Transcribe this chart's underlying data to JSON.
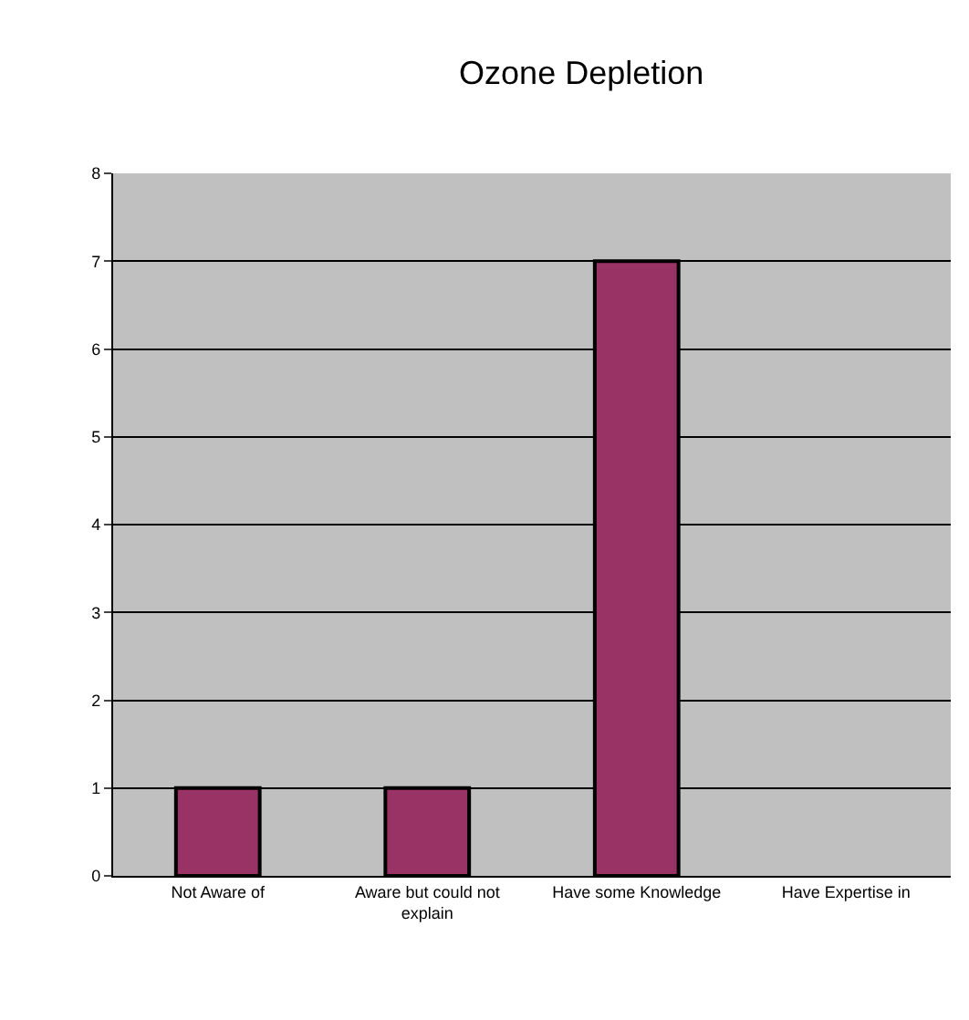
{
  "chart_data": {
    "type": "bar",
    "title": "Ozone Depletion",
    "categories": [
      "Not Aware of",
      "Aware but could not explain",
      "Have some Knowledge",
      "Have Expertise in"
    ],
    "values": [
      1,
      1,
      7,
      0
    ],
    "color": "#993366",
    "ylim": [
      0,
      8
    ],
    "yticks": [
      0,
      1,
      2,
      3,
      4,
      5,
      6,
      7,
      8
    ],
    "grid": "y",
    "legend": false
  }
}
